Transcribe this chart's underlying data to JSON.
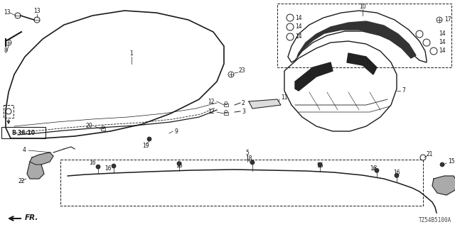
{
  "bg_color": "#ffffff",
  "diagram_code": "TZ54B5100A",
  "line_color": "#1a1a1a",
  "label_color": "#111111",
  "label_fs": 5.5,
  "fig_w": 6.4,
  "fig_h": 3.2,
  "dpi": 100
}
